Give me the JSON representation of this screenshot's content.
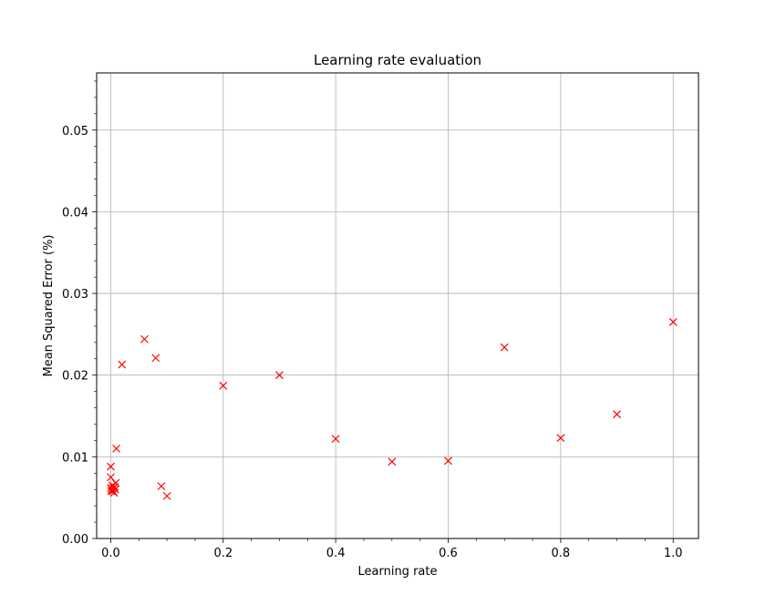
{
  "chart_data": {
    "type": "scatter",
    "title": "Learning rate evaluation",
    "xlabel": "Learning rate",
    "ylabel": "Mean Squared Error (%)",
    "xlim": [
      -0.025,
      1.045
    ],
    "ylim": [
      0.0,
      0.057
    ],
    "xticks": [
      0.0,
      0.2,
      0.4,
      0.6,
      0.8,
      1.0
    ],
    "xtick_labels": [
      "0.0",
      "0.2",
      "0.4",
      "0.6",
      "0.8",
      "1.0"
    ],
    "yticks": [
      0.0,
      0.01,
      0.02,
      0.03,
      0.04,
      0.05
    ],
    "ytick_labels": [
      "0.00",
      "0.01",
      "0.02",
      "0.03",
      "0.04",
      "0.05"
    ],
    "grid": true,
    "marker": "x",
    "color": "#ff0000",
    "points": [
      {
        "x": 0.0001,
        "y": 0.0088
      },
      {
        "x": 0.0002,
        "y": 0.0075
      },
      {
        "x": 0.0005,
        "y": 0.0062
      },
      {
        "x": 0.001,
        "y": 0.0058
      },
      {
        "x": 0.002,
        "y": 0.006
      },
      {
        "x": 0.003,
        "y": 0.0065
      },
      {
        "x": 0.004,
        "y": 0.0058
      },
      {
        "x": 0.005,
        "y": 0.0062
      },
      {
        "x": 0.006,
        "y": 0.0056
      },
      {
        "x": 0.007,
        "y": 0.0063
      },
      {
        "x": 0.008,
        "y": 0.006
      },
      {
        "x": 0.009,
        "y": 0.0068
      },
      {
        "x": 0.01,
        "y": 0.011
      },
      {
        "x": 0.02,
        "y": 0.0213
      },
      {
        "x": 0.06,
        "y": 0.0244
      },
      {
        "x": 0.08,
        "y": 0.0221
      },
      {
        "x": 0.09,
        "y": 0.0064
      },
      {
        "x": 0.1,
        "y": 0.0052
      },
      {
        "x": 0.2,
        "y": 0.0187
      },
      {
        "x": 0.3,
        "y": 0.02
      },
      {
        "x": 0.4,
        "y": 0.0122
      },
      {
        "x": 0.5,
        "y": 0.0094
      },
      {
        "x": 0.6,
        "y": 0.0095
      },
      {
        "x": 0.7,
        "y": 0.0234
      },
      {
        "x": 0.8,
        "y": 0.0123
      },
      {
        "x": 0.9,
        "y": 0.0152
      },
      {
        "x": 1.0,
        "y": 0.0265
      }
    ]
  }
}
